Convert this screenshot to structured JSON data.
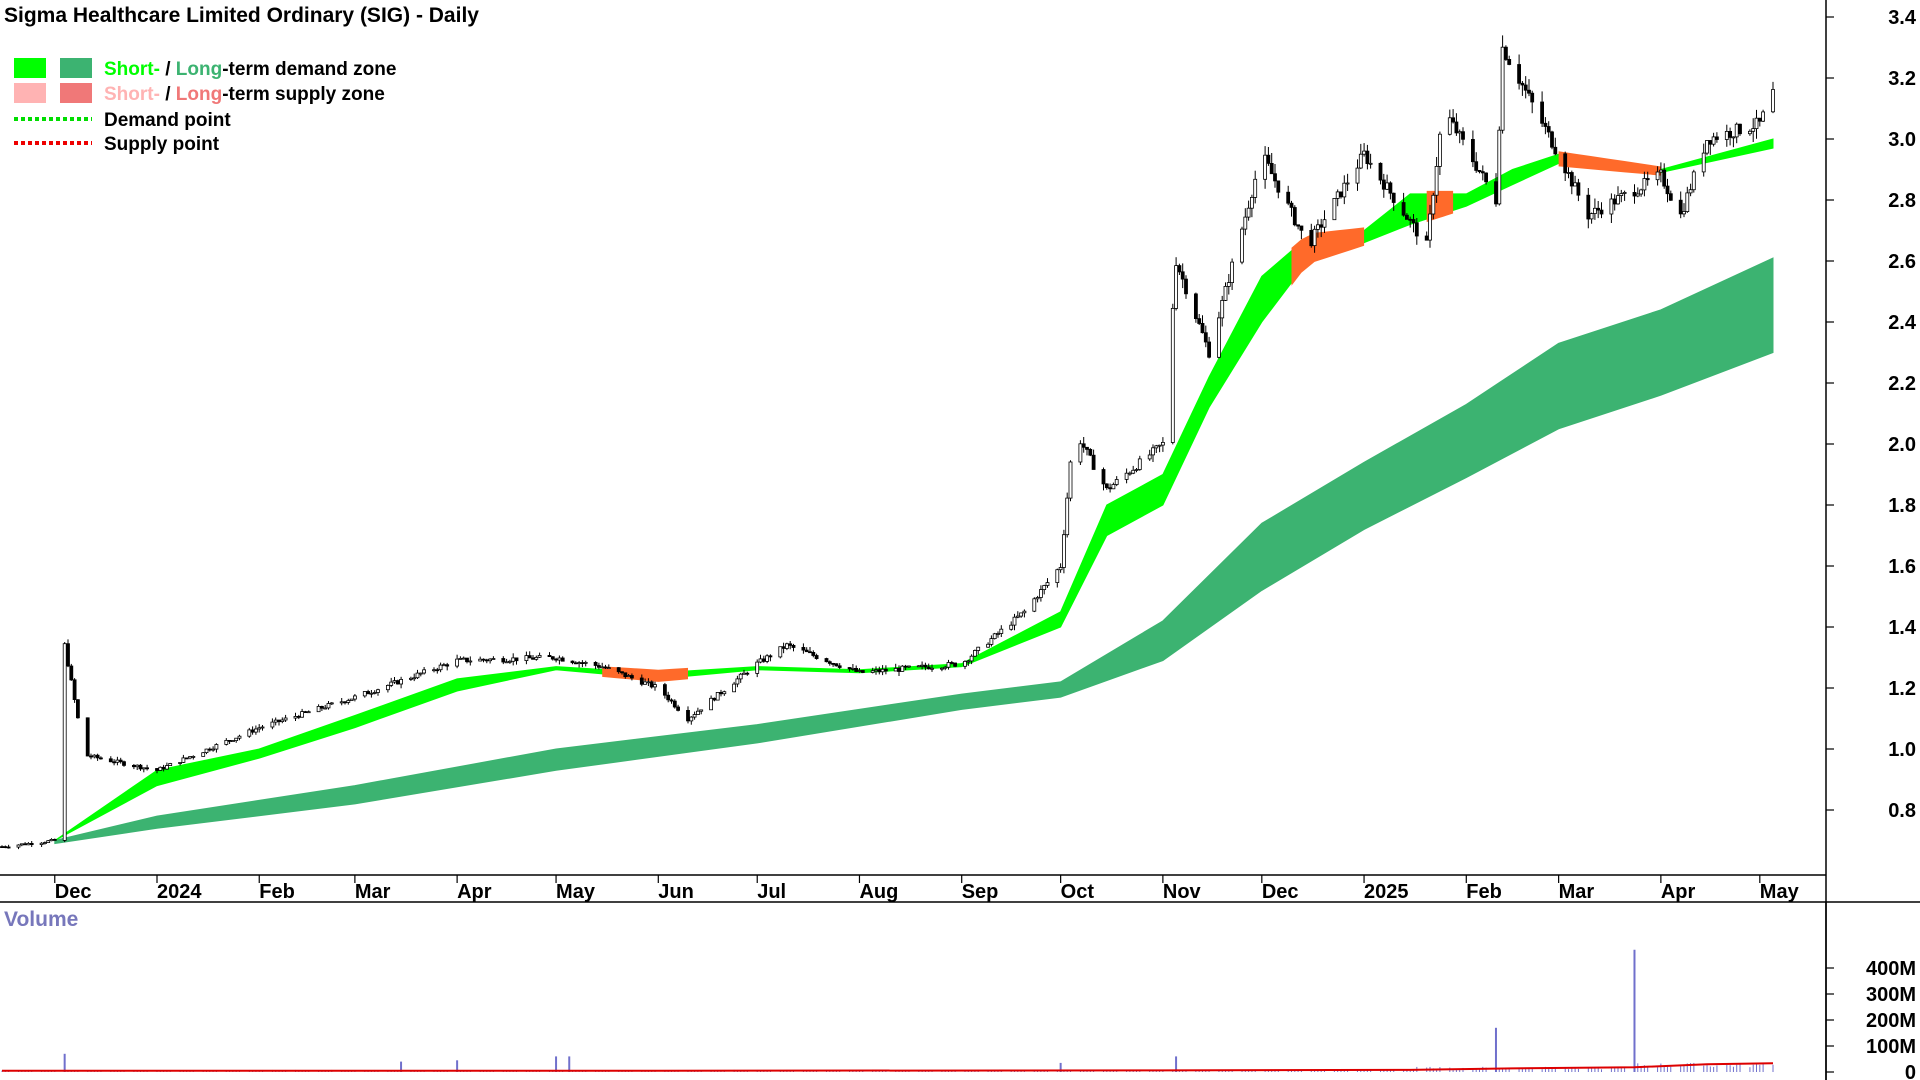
{
  "title": "Sigma Healthcare Limited Ordinary (SIG) - Daily",
  "legend": {
    "short_label": "Short-",
    "slash": " / ",
    "long_label": "Long",
    "demand_suffix": "-term demand zone",
    "supply_suffix": "-term supply zone",
    "demand_point": "Demand point",
    "supply_point": "Supply point"
  },
  "volume_label": "Volume",
  "colors": {
    "short_demand": "#00ff00",
    "long_demand": "#3cb371",
    "short_supply": "#ffb3b3",
    "long_supply": "#f07878",
    "supply_band": "#ff6a2a",
    "demand_point": "#00dd00",
    "supply_point": "#ee0000",
    "volume_bar": "#7070cc",
    "volume_avg": "#dd0000"
  },
  "chart_data": {
    "type": "candlestick",
    "title": "Sigma Healthcare Limited Ordinary (SIG) - Daily",
    "y_axis": {
      "ticks": [
        "3.4",
        "3.2",
        "3.0",
        "2.8",
        "2.6",
        "2.4",
        "2.2",
        "2.0",
        "1.8",
        "1.6",
        "1.4",
        "1.2",
        "1.0",
        "0.8"
      ],
      "range": [
        0.6,
        3.4
      ],
      "position": "right"
    },
    "x_axis": {
      "labels": [
        "Dec",
        "2024",
        "Feb",
        "Mar",
        "Apr",
        "May",
        "Jun",
        "Jul",
        "Aug",
        "Sep",
        "Oct",
        "Nov",
        "Dec",
        "2025",
        "Feb",
        "Mar",
        "Apr",
        "May"
      ]
    },
    "price_points": [
      {
        "date": "2023-11-15",
        "price": 0.68
      },
      {
        "date": "2023-12-01",
        "price": 0.7
      },
      {
        "date": "2023-12-04",
        "price": 1.34
      },
      {
        "date": "2023-12-10",
        "price": 0.98
      },
      {
        "date": "2024-01-01",
        "price": 0.93
      },
      {
        "date": "2024-02-01",
        "price": 1.07
      },
      {
        "date": "2024-03-01",
        "price": 1.17
      },
      {
        "date": "2024-04-01",
        "price": 1.29
      },
      {
        "date": "2024-05-01",
        "price": 1.3
      },
      {
        "date": "2024-05-15",
        "price": 1.27
      },
      {
        "date": "2024-06-01",
        "price": 1.2
      },
      {
        "date": "2024-06-10",
        "price": 1.1
      },
      {
        "date": "2024-07-01",
        "price": 1.28
      },
      {
        "date": "2024-07-10",
        "price": 1.34
      },
      {
        "date": "2024-08-01",
        "price": 1.25
      },
      {
        "date": "2024-09-01",
        "price": 1.28
      },
      {
        "date": "2024-09-20",
        "price": 1.45
      },
      {
        "date": "2024-10-01",
        "price": 1.6
      },
      {
        "date": "2024-10-05",
        "price": 2.05
      },
      {
        "date": "2024-10-15",
        "price": 1.85
      },
      {
        "date": "2024-11-01",
        "price": 2.0
      },
      {
        "date": "2024-11-05",
        "price": 2.6
      },
      {
        "date": "2024-11-15",
        "price": 2.3
      },
      {
        "date": "2024-12-01",
        "price": 2.95
      },
      {
        "date": "2024-12-15",
        "price": 2.65
      },
      {
        "date": "2025-01-01",
        "price": 2.95
      },
      {
        "date": "2025-01-20",
        "price": 2.65
      },
      {
        "date": "2025-01-25",
        "price": 3.1
      },
      {
        "date": "2025-02-10",
        "price": 2.8
      },
      {
        "date": "2025-02-12",
        "price": 3.3
      },
      {
        "date": "2025-03-01",
        "price": 2.95
      },
      {
        "date": "2025-03-10",
        "price": 2.75
      },
      {
        "date": "2025-04-01",
        "price": 2.88
      },
      {
        "date": "2025-04-07",
        "price": 2.75
      },
      {
        "date": "2025-04-15",
        "price": 3.0
      },
      {
        "date": "2025-05-01",
        "price": 3.05
      },
      {
        "date": "2025-05-05",
        "price": 3.15
      }
    ],
    "short_term_zone": [
      {
        "date": "2023-12-01",
        "low": 0.7,
        "high": 0.7
      },
      {
        "date": "2024-01-01",
        "low": 0.88,
        "high": 0.93
      },
      {
        "date": "2024-02-01",
        "low": 0.97,
        "high": 1.0
      },
      {
        "date": "2024-03-01",
        "low": 1.07,
        "high": 1.11
      },
      {
        "date": "2024-04-01",
        "low": 1.19,
        "high": 1.23
      },
      {
        "date": "2024-05-01",
        "low": 1.26,
        "high": 1.27
      },
      {
        "date": "2024-06-01",
        "low": 1.23,
        "high": 1.25
      },
      {
        "date": "2024-07-01",
        "low": 1.26,
        "high": 1.27
      },
      {
        "date": "2024-08-01",
        "low": 1.25,
        "high": 1.26
      },
      {
        "date": "2024-09-01",
        "low": 1.27,
        "high": 1.28
      },
      {
        "date": "2024-10-01",
        "low": 1.4,
        "high": 1.45
      },
      {
        "date": "2024-10-15",
        "low": 1.7,
        "high": 1.8
      },
      {
        "date": "2024-11-01",
        "low": 1.8,
        "high": 1.9
      },
      {
        "date": "2024-11-15",
        "low": 2.12,
        "high": 2.22
      },
      {
        "date": "2024-12-01",
        "low": 2.4,
        "high": 2.55
      },
      {
        "date": "2024-12-15",
        "low": 2.6,
        "high": 2.68
      },
      {
        "date": "2025-01-01",
        "low": 2.66,
        "high": 2.7
      },
      {
        "date": "2025-01-15",
        "low": 2.72,
        "high": 2.82
      },
      {
        "date": "2025-02-01",
        "low": 2.78,
        "high": 2.82
      },
      {
        "date": "2025-02-15",
        "low": 2.85,
        "high": 2.9
      },
      {
        "date": "2025-03-01",
        "low": 2.92,
        "high": 2.95
      },
      {
        "date": "2025-04-01",
        "low": 2.89,
        "high": 2.9
      },
      {
        "date": "2025-05-05",
        "low": 2.97,
        "high": 3.0
      }
    ],
    "long_term_zone": [
      {
        "date": "2023-12-01",
        "low": 0.69,
        "high": 0.7
      },
      {
        "date": "2024-01-01",
        "low": 0.74,
        "high": 0.78
      },
      {
        "date": "2024-03-01",
        "low": 0.82,
        "high": 0.88
      },
      {
        "date": "2024-05-01",
        "low": 0.93,
        "high": 1.0
      },
      {
        "date": "2024-07-01",
        "low": 1.02,
        "high": 1.08
      },
      {
        "date": "2024-09-01",
        "low": 1.13,
        "high": 1.18
      },
      {
        "date": "2024-10-01",
        "low": 1.17,
        "high": 1.22
      },
      {
        "date": "2024-11-01",
        "low": 1.29,
        "high": 1.42
      },
      {
        "date": "2024-12-01",
        "low": 1.52,
        "high": 1.74
      },
      {
        "date": "2025-01-01",
        "low": 1.72,
        "high": 1.94
      },
      {
        "date": "2025-02-01",
        "low": 1.89,
        "high": 2.13
      },
      {
        "date": "2025-03-01",
        "low": 2.05,
        "high": 2.33
      },
      {
        "date": "2025-04-01",
        "low": 2.16,
        "high": 2.44
      },
      {
        "date": "2025-05-05",
        "low": 2.3,
        "high": 2.61
      }
    ],
    "volume_axis": {
      "ticks": [
        "400M",
        "300M",
        "200M",
        "100M",
        "0"
      ],
      "range": [
        0,
        480
      ]
    },
    "volume_spikes": [
      {
        "date": "2023-12-04",
        "value": 70
      },
      {
        "date": "2024-03-15",
        "value": 40
      },
      {
        "date": "2024-04-01",
        "value": 45
      },
      {
        "date": "2024-05-01",
        "value": 60
      },
      {
        "date": "2024-05-05",
        "value": 60
      },
      {
        "date": "2024-10-01",
        "value": 35
      },
      {
        "date": "2024-11-05",
        "value": 60
      },
      {
        "date": "2025-02-10",
        "value": 170
      },
      {
        "date": "2025-03-24",
        "value": 470
      }
    ]
  }
}
